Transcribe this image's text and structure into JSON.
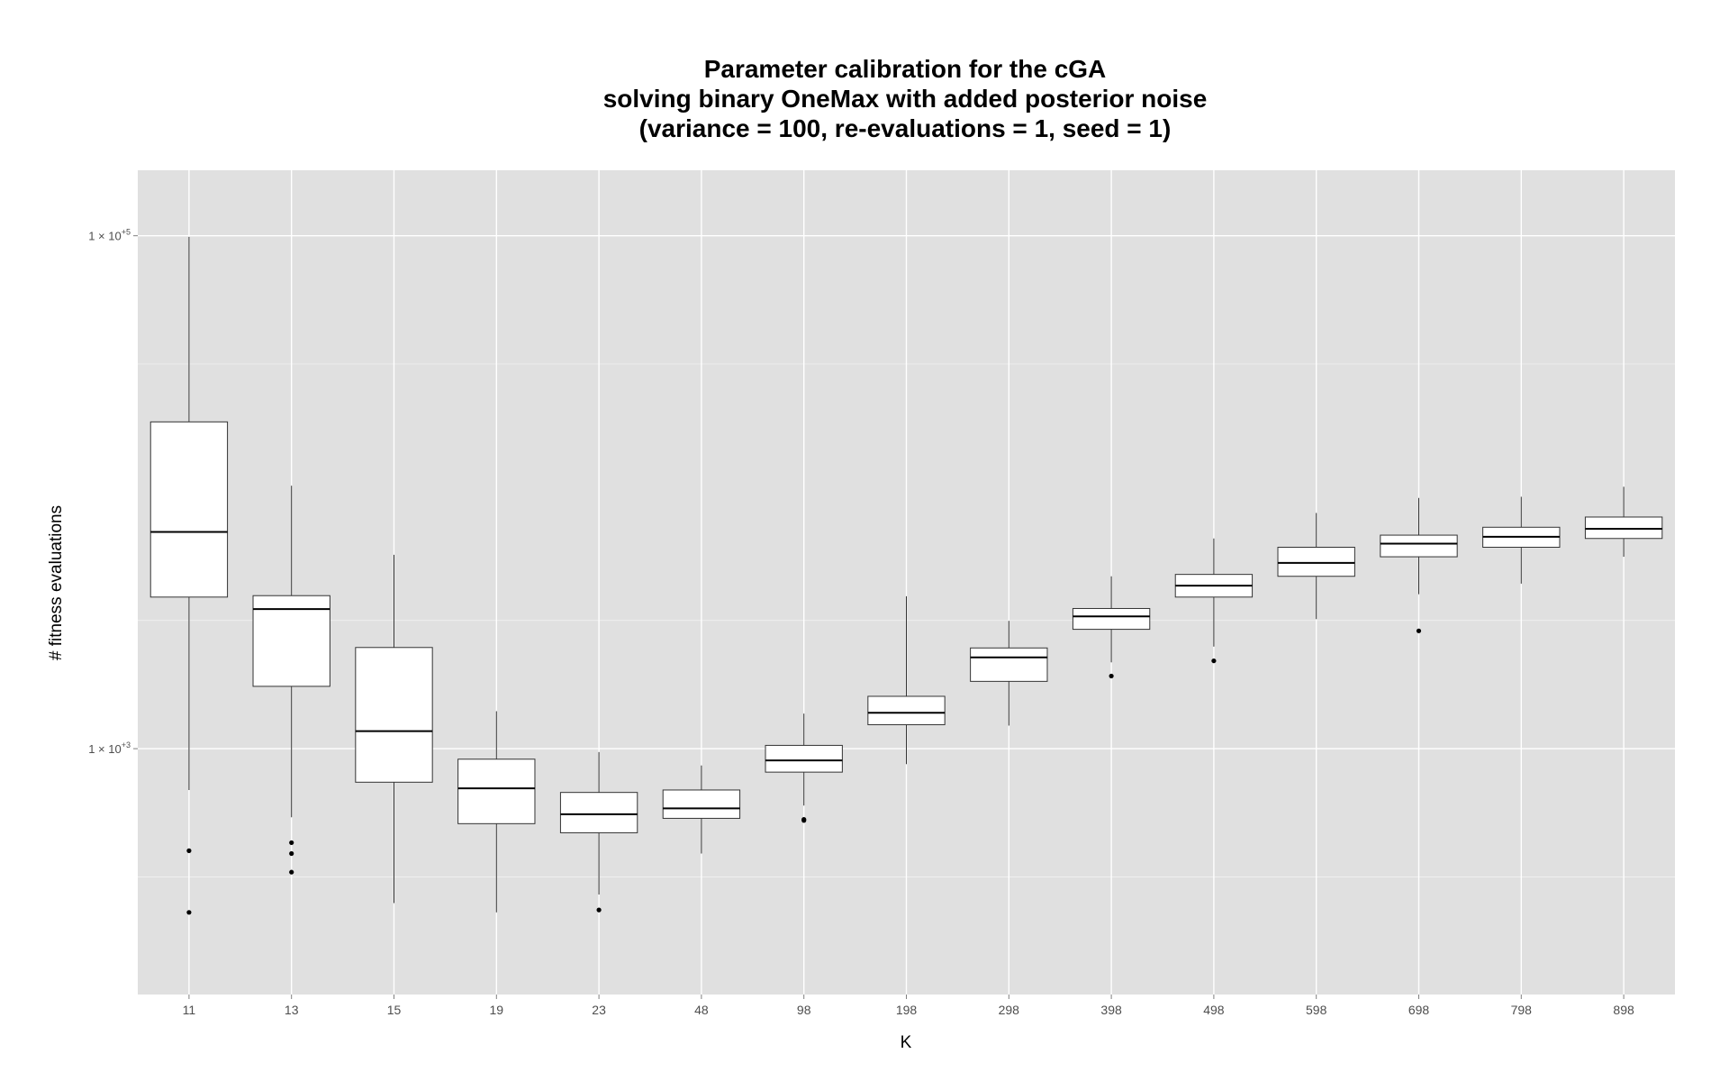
{
  "chart_data": {
    "type": "box",
    "title": [
      "Parameter calibration for the cGA",
      "solving binary OneMax with added posterior noise",
      "(variance = 100, re-evaluations = 1, seed = 1)"
    ],
    "xlabel": "K",
    "ylabel": "# fitness evaluations",
    "y_scale": "log10",
    "ylim": [
      110,
      180000
    ],
    "y_ticks": [
      {
        "value": 1000,
        "base": "1 × 10",
        "exp": "+3"
      },
      {
        "value": 100000,
        "base": "1 × 10",
        "exp": "+5"
      }
    ],
    "grid": true,
    "panel_color": "#e0e0e0",
    "grid_color": "#ffffff",
    "categories": [
      "11",
      "13",
      "15",
      "19",
      "23",
      "48",
      "98",
      "198",
      "298",
      "398",
      "498",
      "598",
      "698",
      "798",
      "898"
    ],
    "boxes": [
      {
        "whisker_low": 690,
        "q1": 3900,
        "median": 7000,
        "q3": 18800,
        "whisker_high": 99000,
        "outliers": [
          400,
          230
        ]
      },
      {
        "whisker_low": 540,
        "q1": 1750,
        "median": 3500,
        "q3": 3950,
        "whisker_high": 10600,
        "outliers": [
          430,
          390,
          330
        ]
      },
      {
        "whisker_low": 250,
        "q1": 740,
        "median": 1170,
        "q3": 2480,
        "whisker_high": 5700,
        "outliers": []
      },
      {
        "whisker_low": 230,
        "q1": 510,
        "median": 700,
        "q3": 910,
        "whisker_high": 1400,
        "outliers": []
      },
      {
        "whisker_low": 270,
        "q1": 470,
        "median": 555,
        "q3": 675,
        "whisker_high": 970,
        "outliers": [
          235
        ]
      },
      {
        "whisker_low": 390,
        "q1": 535,
        "median": 585,
        "q3": 690,
        "whisker_high": 860,
        "outliers": []
      },
      {
        "whisker_low": 600,
        "q1": 810,
        "median": 900,
        "q3": 1030,
        "whisker_high": 1370,
        "outliers": [
          530,
          525
        ]
      },
      {
        "whisker_low": 870,
        "q1": 1240,
        "median": 1380,
        "q3": 1600,
        "whisker_high": 3930,
        "outliers": []
      },
      {
        "whisker_low": 1230,
        "q1": 1830,
        "median": 2270,
        "q3": 2470,
        "whisker_high": 3150,
        "outliers": []
      },
      {
        "whisker_low": 2170,
        "q1": 2920,
        "median": 3280,
        "q3": 3520,
        "whisker_high": 4700,
        "outliers": [
          1920
        ]
      },
      {
        "whisker_low": 2500,
        "q1": 3900,
        "median": 4320,
        "q3": 4780,
        "whisker_high": 6600,
        "outliers": [
          2200
        ]
      },
      {
        "whisker_low": 3200,
        "q1": 4700,
        "median": 5300,
        "q3": 6100,
        "whisker_high": 8300,
        "outliers": []
      },
      {
        "whisker_low": 4000,
        "q1": 5600,
        "median": 6300,
        "q3": 6800,
        "whisker_high": 9500,
        "outliers": [
          2880
        ]
      },
      {
        "whisker_low": 4400,
        "q1": 6100,
        "median": 6700,
        "q3": 7300,
        "whisker_high": 9600,
        "outliers": []
      },
      {
        "whisker_low": 5600,
        "q1": 6600,
        "median": 7200,
        "q3": 8000,
        "whisker_high": 10500,
        "outliers": []
      }
    ]
  }
}
